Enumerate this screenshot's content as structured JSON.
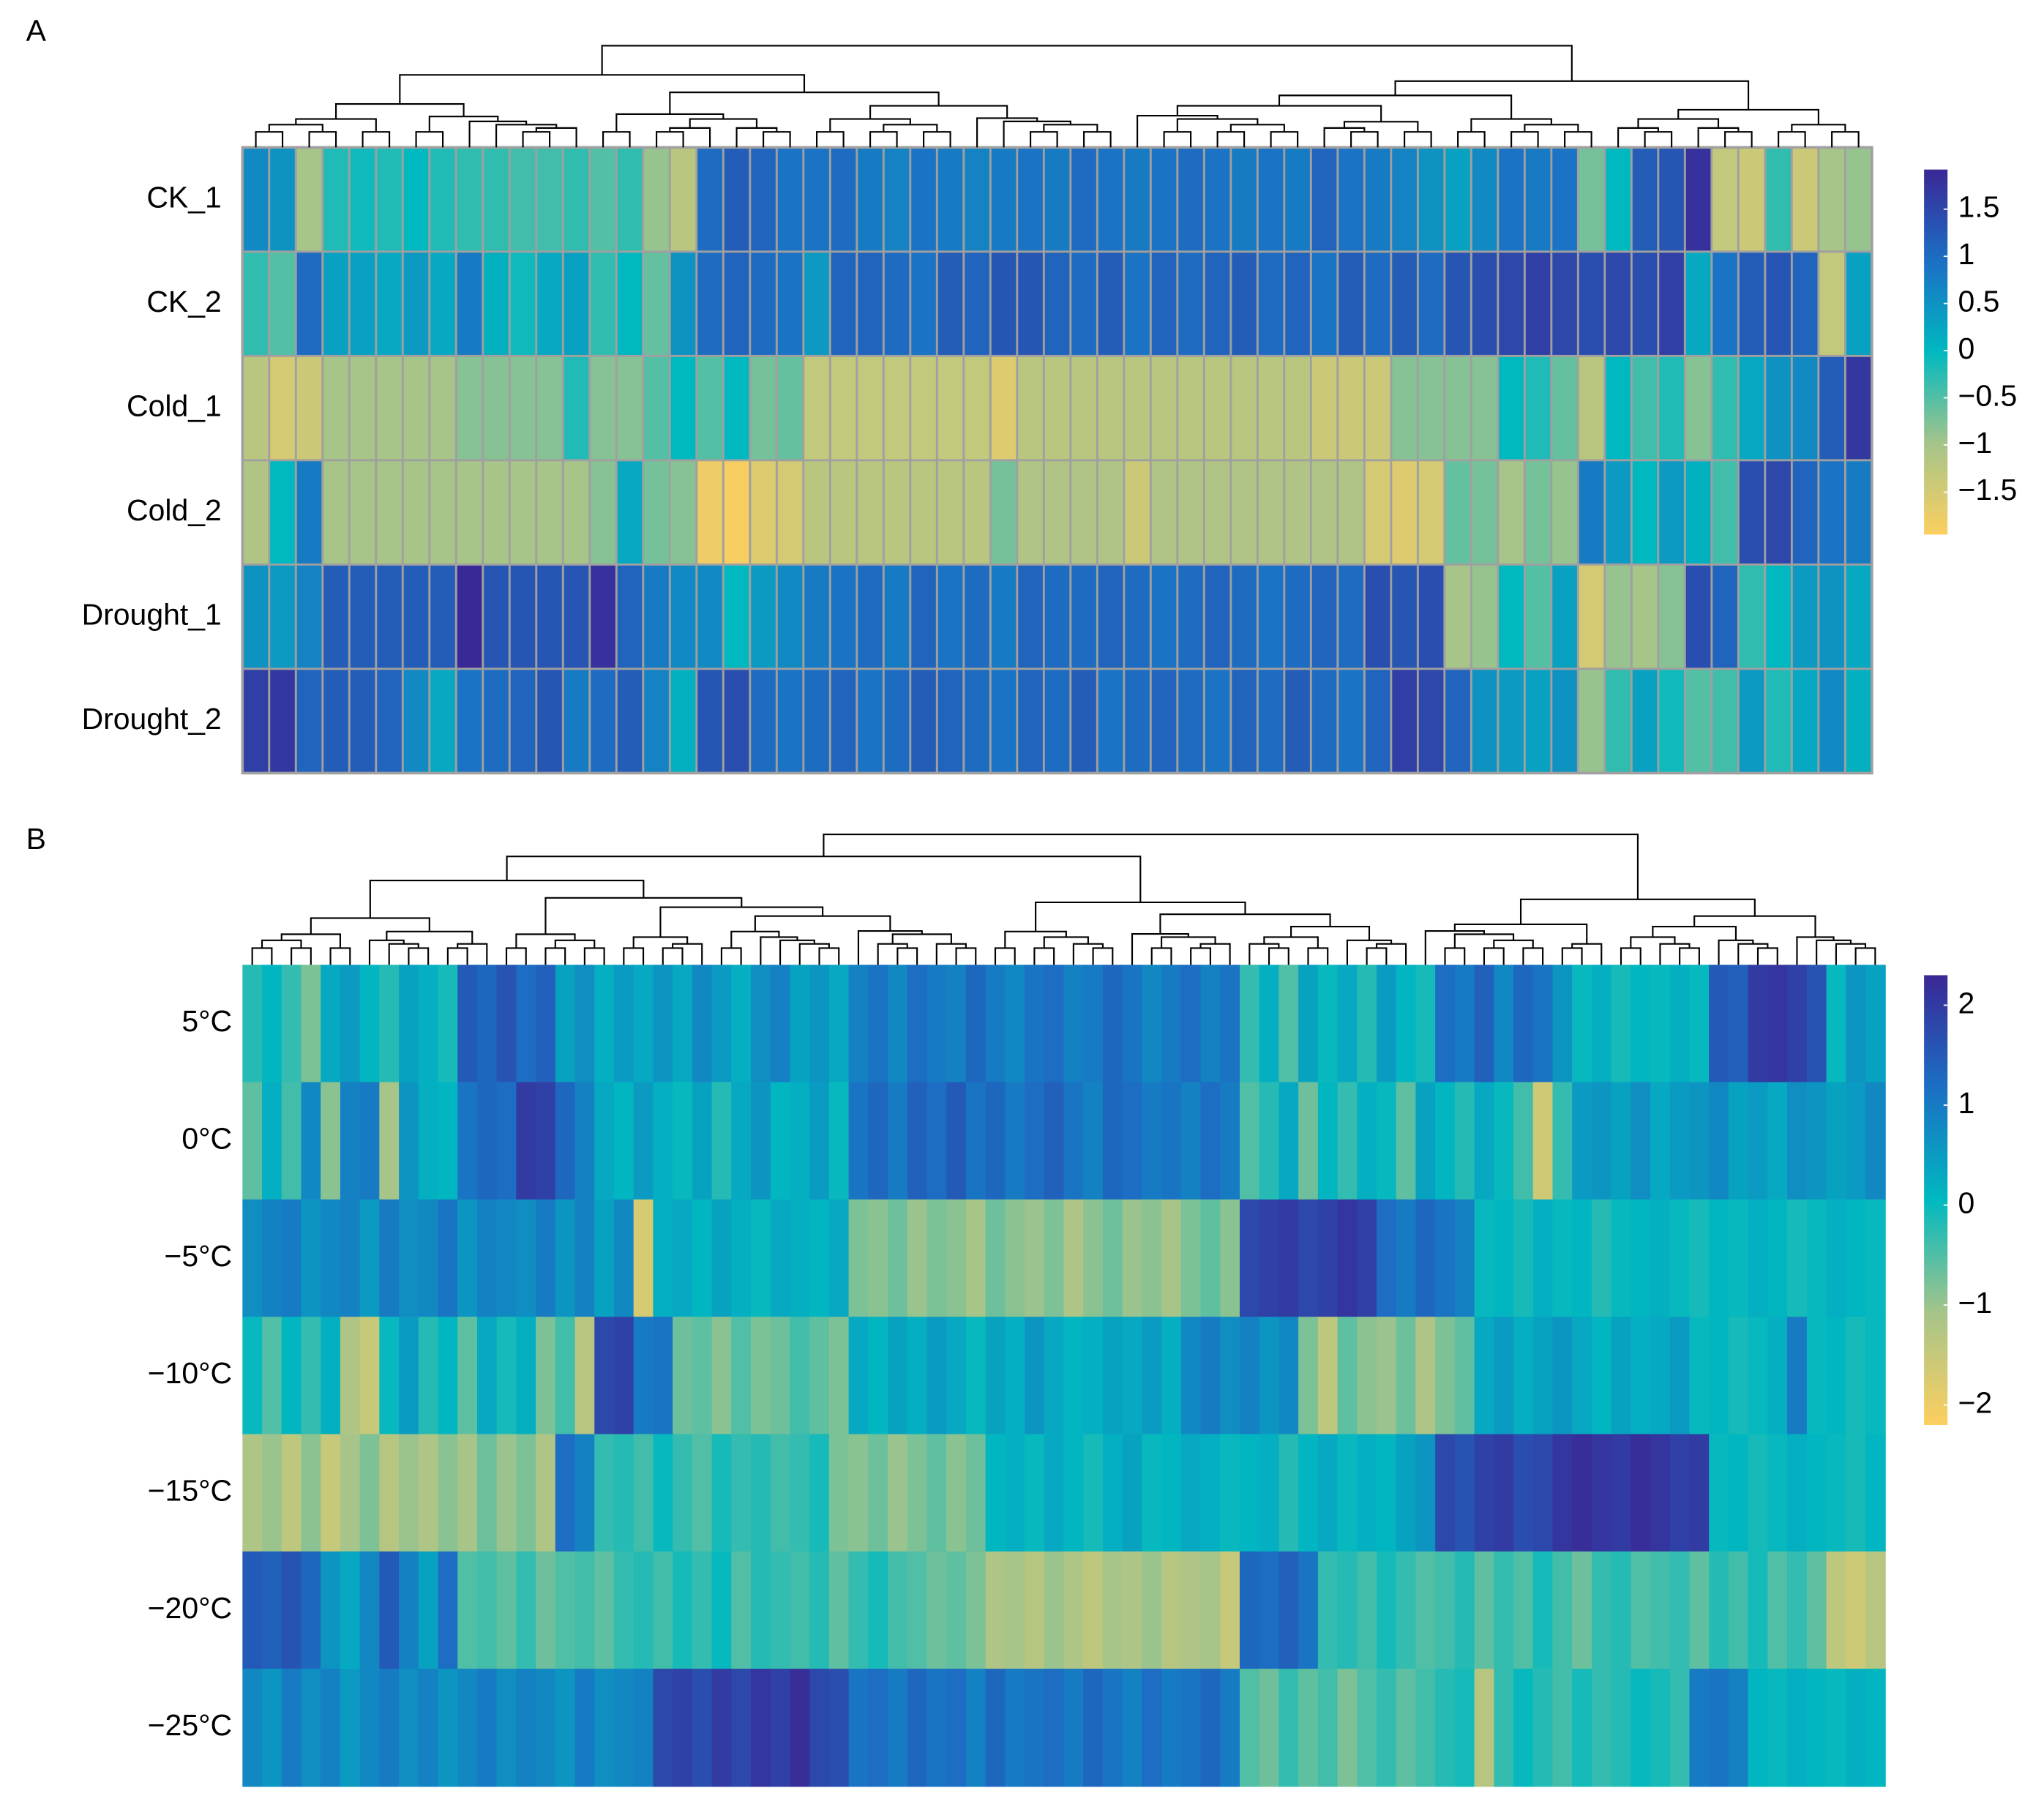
{
  "chart_data": [
    {
      "type": "heatmap",
      "panel_label": "A",
      "rows": [
        "CK_1",
        "CK_2",
        "Cold_1",
        "Cold_2",
        "Drought_1",
        "Drought_2"
      ],
      "values": [
        [
          0.6,
          0.5,
          -1.0,
          -0.2,
          -0.1,
          -0.2,
          0,
          -0.2,
          -0.3,
          -0.3,
          -0.4,
          -0.4,
          -0.3,
          -0.5,
          -0.3,
          -0.9,
          -1.2,
          1.0,
          1.2,
          1.1,
          0.9,
          0.9,
          1.0,
          0.8,
          0.7,
          0.9,
          0.8,
          0.7,
          0.8,
          0.9,
          0.8,
          1.0,
          0.9,
          0.8,
          0.9,
          1.0,
          0.9,
          0.8,
          0.9,
          0.8,
          1.1,
          0.9,
          0.8,
          0.7,
          0.5,
          0.3,
          0.6,
          0.9,
          0.8,
          0.9,
          -0.7,
          0,
          1.2,
          1.3,
          1.8,
          -1.3,
          -1.4,
          -0.3,
          -1.4,
          -1.0,
          -0.9
        ],
        [
          -0.3,
          -0.5,
          1.0,
          0.3,
          0.3,
          0.2,
          0.4,
          0.2,
          0.8,
          0.1,
          -0.1,
          0.2,
          0.3,
          -0.3,
          0,
          -0.6,
          0.5,
          1.0,
          1.1,
          1.0,
          0.9,
          0.4,
          1.1,
          1.1,
          1.0,
          0.9,
          1.2,
          1.1,
          1.3,
          1.3,
          1.1,
          1.0,
          1.2,
          0.9,
          1.1,
          1.0,
          1.1,
          1.2,
          1.0,
          1.1,
          0.9,
          1.2,
          1.0,
          1.2,
          1.0,
          1.3,
          1.4,
          1.5,
          1.6,
          1.5,
          1.4,
          1.5,
          1.4,
          1.6,
          0.2,
          0.9,
          1.2,
          1.3,
          1.1,
          -1.3,
          0.3
        ],
        [
          -1.2,
          -1.5,
          -1.4,
          -1.0,
          -1.0,
          -1.0,
          -1.0,
          -1.0,
          -0.8,
          -0.8,
          -0.8,
          -0.8,
          -0.2,
          -0.8,
          -0.8,
          -0.5,
          0,
          -0.5,
          0,
          -0.7,
          -0.6,
          -1.3,
          -1.3,
          -1.3,
          -1.3,
          -1.3,
          -1.3,
          -1.3,
          -1.6,
          -1.2,
          -1.2,
          -1.2,
          -1.2,
          -1.2,
          -1.2,
          -1.2,
          -1.2,
          -1.2,
          -1.2,
          -1.2,
          -1.4,
          -1.4,
          -1.4,
          -0.8,
          -0.8,
          -0.8,
          -0.8,
          0,
          -0.2,
          -0.6,
          -1.2,
          0,
          -0.4,
          -0.2,
          -0.8,
          -0.3,
          0.2,
          0.5,
          0.6,
          1.2,
          1.7
        ],
        [
          -1.1,
          0,
          0.8,
          -1.0,
          -1.0,
          -1.0,
          -1.0,
          -1.0,
          -1.0,
          -1.0,
          -1.0,
          -1.0,
          -1.0,
          -0.8,
          0.2,
          -0.7,
          -0.8,
          -1.8,
          -1.9,
          -1.6,
          -1.5,
          -1.2,
          -1.2,
          -1.2,
          -1.2,
          -1.2,
          -1.2,
          -1.2,
          -0.7,
          -1.1,
          -1.1,
          -1.1,
          -1.1,
          -1.4,
          -1.1,
          -1.1,
          -1.1,
          -1.1,
          -1.1,
          -1.1,
          -1.1,
          -1.1,
          -1.5,
          -1.6,
          -1.5,
          -0.6,
          -0.7,
          -1.0,
          -0.7,
          -0.9,
          0.8,
          0.4,
          0,
          0.4,
          0.1,
          -0.4,
          1.4,
          1.5,
          1.1,
          0.9,
          0.8
        ],
        [
          0.5,
          0.4,
          0.7,
          1.2,
          1.2,
          1.2,
          1.2,
          1.2,
          1.9,
          1.3,
          1.3,
          1.3,
          1.3,
          1.8,
          1.1,
          0.8,
          0.6,
          0.6,
          0,
          0.4,
          0.6,
          0.8,
          0.9,
          1.0,
          0.8,
          1.1,
          0.9,
          1.0,
          0.8,
          1.1,
          1.0,
          1.0,
          1.1,
          1.0,
          0.9,
          1.0,
          1.1,
          1.0,
          0.9,
          1.0,
          1.1,
          1.0,
          1.4,
          1.3,
          1.4,
          -1.0,
          -0.9,
          0,
          -0.5,
          0.3,
          -1.5,
          -0.9,
          -1.0,
          -0.8,
          1.4,
          1.1,
          -0.3,
          0,
          0.4,
          0.5,
          0.2
        ],
        [
          1.6,
          1.7,
          1.1,
          1.2,
          1.2,
          1.1,
          0.6,
          0.2,
          0.9,
          1.0,
          1.1,
          1.3,
          0.8,
          1.0,
          1.2,
          0.7,
          0.1,
          1.3,
          1.4,
          1.0,
          0.9,
          1.0,
          1.1,
          0.9,
          1.0,
          1.2,
          1.1,
          1.0,
          0.9,
          1.1,
          1.0,
          1.2,
          0.9,
          1.0,
          1.1,
          1.0,
          0.9,
          1.1,
          1.0,
          1.2,
          1.0,
          0.9,
          1.1,
          1.6,
          1.5,
          1.1,
          0.5,
          0.4,
          0.3,
          0.5,
          -0.9,
          -0.3,
          0.3,
          -0.1,
          -0.5,
          -0.4,
          0.4,
          -0.2,
          0.2,
          0.6,
          0.1
        ]
      ],
      "zlim": [
        -1.95,
        1.92
      ],
      "zticks": [
        {
          "value": 1.5,
          "label": "1.5"
        },
        1,
        {
          "value": 0.5,
          "label": "0.5"
        },
        0,
        {
          "value": -0.5,
          "label": "−0.5"
        },
        {
          "value": -1,
          "label": "−1"
        },
        {
          "value": -1.5,
          "label": "−1.5"
        }
      ],
      "colors": [
        "#fccf5f",
        "#a5c48a",
        "#00b9c0",
        "#1b6fc4",
        "#3a2896"
      ],
      "cell_borders": true
    },
    {
      "type": "heatmap",
      "panel_label": "B",
      "rows": [
        "5°C",
        "0°C",
        "−5°C",
        "−10°C",
        "−15°C",
        "−20°C",
        "−25°C"
      ],
      "values": [
        [
          -0.2,
          0.1,
          -0.3,
          -0.8,
          0.3,
          0.5,
          0.1,
          -0.2,
          0.4,
          0.2,
          -0.1,
          1.5,
          1.3,
          1.6,
          1.2,
          1.4,
          0.4,
          0.7,
          0.2,
          0.5,
          0.3,
          0.6,
          0.3,
          0.8,
          0.5,
          0.2,
          0.7,
          0.9,
          0.4,
          0.6,
          0.3,
          0.9,
          1.1,
          0.8,
          1.2,
          1.0,
          0.9,
          1.3,
          1.0,
          0.8,
          1.1,
          1.2,
          0.9,
          1.0,
          1.3,
          1.1,
          0.8,
          1.0,
          1.2,
          0.9,
          1.1,
          -0.3,
          0.2,
          -0.5,
          0.4,
          0.0,
          0.3,
          -0.2,
          0.5,
          0.1,
          -0.1,
          1.2,
          1.0,
          1.4,
          0.8,
          1.3,
          1.1,
          0.6,
          0.0,
          0.2,
          -0.1,
          0.1,
          0.0,
          0.2,
          0.0,
          1.5,
          1.4,
          2.0,
          2.1,
          1.9,
          1.6,
          0.0,
          0.6,
          0.4
        ],
        [
          -0.6,
          0.2,
          -0.4,
          0.8,
          -0.9,
          0.9,
          1.0,
          -1.1,
          0.6,
          0.2,
          0.1,
          1.1,
          1.3,
          1.2,
          2.0,
          1.9,
          1.3,
          0.9,
          0.3,
          0.1,
          0.5,
          0.2,
          0.0,
          0.4,
          -0.2,
          0.3,
          0.6,
          0.1,
          0.2,
          0.5,
          0.0,
          1.1,
          1.3,
          1.0,
          1.4,
          1.2,
          1.5,
          1.1,
          1.3,
          1.0,
          1.2,
          1.4,
          1.1,
          0.9,
          1.3,
          1.2,
          1.0,
          1.1,
          0.9,
          1.2,
          1.0,
          -0.5,
          -0.2,
          0.3,
          -0.7,
          0.1,
          -0.3,
          0.2,
          0.0,
          -0.6,
          0.4,
          0.1,
          -0.2,
          0.3,
          0.0,
          -0.4,
          -1.6,
          -0.3,
          0.5,
          0.6,
          0.4,
          0.7,
          0.3,
          0.5,
          0.6,
          0.8,
          0.4,
          0.5,
          0.3,
          0.7,
          0.6,
          0.4,
          0.5,
          0.8
        ],
        [
          0.7,
          0.9,
          1.0,
          0.6,
          0.8,
          0.9,
          0.5,
          1.0,
          0.7,
          0.8,
          1.1,
          0.6,
          0.9,
          0.8,
          0.7,
          1.0,
          0.6,
          0.9,
          0.4,
          0.8,
          -1.7,
          0.2,
          0.3,
          0.1,
          0.4,
          0.2,
          0.0,
          0.3,
          0.2,
          0.1,
          0.3,
          -0.8,
          -0.9,
          -0.7,
          -1.0,
          -0.8,
          -0.9,
          -1.1,
          -0.7,
          -0.9,
          -1.0,
          -0.8,
          -1.2,
          -0.9,
          -0.7,
          -1.0,
          -0.9,
          -1.1,
          -0.8,
          -0.6,
          -0.9,
          1.8,
          1.9,
          2.0,
          1.8,
          1.9,
          2.1,
          1.9,
          1.2,
          1.0,
          1.3,
          1.1,
          0.9,
          0.0,
          0.1,
          -0.1,
          0.2,
          0.0,
          0.1,
          -0.2,
          0.0,
          0.1,
          0.2,
          0.0,
          -0.1,
          0.1,
          0.0,
          0.2,
          0.1,
          -0.1,
          0.0,
          0.2,
          0.1,
          0.0
        ],
        [
          0.0,
          -0.5,
          0.1,
          -0.3,
          0.2,
          -1.2,
          -1.5,
          0.0,
          0.5,
          -0.2,
          0.1,
          -0.6,
          0.3,
          -0.1,
          0.2,
          -0.8,
          -0.4,
          -1.3,
          1.8,
          1.9,
          1.0,
          1.1,
          -0.7,
          -0.6,
          -0.9,
          -0.5,
          -0.8,
          -0.7,
          -0.4,
          -0.6,
          -0.8,
          0.3,
          0.1,
          0.4,
          0.2,
          0.5,
          0.3,
          0.0,
          0.4,
          0.2,
          0.6,
          0.3,
          0.1,
          0.2,
          0.4,
          0.3,
          0.5,
          0.2,
          0.8,
          1.0,
          0.7,
          0.9,
          0.6,
          0.8,
          -0.8,
          -1.4,
          -0.6,
          -0.9,
          -1.0,
          -0.7,
          -1.2,
          -0.8,
          -0.6,
          0.3,
          0.5,
          0.2,
          0.4,
          0.6,
          0.3,
          0.1,
          0.4,
          0.2,
          0.3,
          0.5,
          0.0,
          0.1,
          -0.1,
          0.0,
          0.2,
          1.0,
          0.0,
          0.1,
          -0.1,
          0.0
        ],
        [
          -1.2,
          -1.0,
          -1.4,
          -0.9,
          -1.5,
          -1.1,
          -0.8,
          -1.3,
          -1.0,
          -1.2,
          -0.9,
          -1.1,
          -0.7,
          -1.0,
          -0.8,
          -1.2,
          1.2,
          0.9,
          -0.3,
          -0.2,
          -0.4,
          0.0,
          -0.3,
          -0.5,
          -0.1,
          -0.3,
          -0.2,
          -0.4,
          -0.3,
          -0.1,
          -0.8,
          -0.9,
          -0.7,
          -1.0,
          -0.8,
          -0.6,
          -0.9,
          -0.7,
          0.1,
          0.2,
          0.0,
          0.3,
          0.1,
          -0.1,
          0.2,
          0.4,
          0.0,
          0.1,
          0.3,
          0.2,
          0.0,
          0.1,
          0.2,
          -0.2,
          0.1,
          0.3,
          0.0,
          0.2,
          0.1,
          0.4,
          0.6,
          1.8,
          1.6,
          1.9,
          2.0,
          1.7,
          1.8,
          2.1,
          2.2,
          2.1,
          2.0,
          2.2,
          2.1,
          1.9,
          2.0,
          0.0,
          0.1,
          -0.1,
          0.0,
          0.2,
          0.1,
          0.0,
          -0.1,
          0.1
        ],
        [
          1.5,
          1.4,
          1.6,
          1.3,
          0.6,
          0.3,
          0.8,
          1.5,
          0.9,
          0.4,
          1.2,
          -0.5,
          -0.4,
          -0.6,
          -0.3,
          -0.7,
          -0.5,
          -0.4,
          -0.6,
          -0.3,
          -0.2,
          -0.4,
          -0.1,
          -0.3,
          0.0,
          -0.5,
          -0.2,
          -0.3,
          -0.4,
          -0.2,
          -0.6,
          -0.3,
          -0.1,
          -0.4,
          -0.5,
          -0.7,
          -0.6,
          -0.8,
          -1.2,
          -1.1,
          -1.3,
          -1.0,
          -1.2,
          -1.4,
          -1.1,
          -1.2,
          -1.0,
          -1.3,
          -1.2,
          -1.1,
          -1.5,
          1.3,
          1.2,
          1.4,
          1.1,
          -0.3,
          -0.2,
          -0.4,
          -0.1,
          -0.3,
          -0.5,
          -0.4,
          -0.2,
          -0.6,
          -0.3,
          -0.5,
          -0.1,
          -0.4,
          -0.7,
          -0.3,
          -0.2,
          -0.5,
          -0.4,
          -0.3,
          -0.6,
          -0.2,
          -0.4,
          -0.1,
          -0.5,
          -0.3,
          -0.6,
          -1.4,
          -1.6,
          -1.3
        ],
        [
          0.8,
          0.6,
          1.0,
          0.7,
          0.9,
          0.5,
          0.8,
          1.0,
          0.7,
          0.9,
          0.6,
          0.8,
          1.0,
          0.7,
          0.9,
          0.8,
          0.6,
          1.0,
          0.7,
          0.8,
          0.9,
          1.8,
          1.9,
          1.7,
          2.0,
          1.8,
          2.1,
          1.9,
          2.2,
          1.8,
          1.7,
          1.1,
          1.2,
          1.0,
          1.3,
          1.1,
          1.2,
          0.9,
          1.3,
          1.0,
          1.1,
          1.2,
          1.0,
          1.3,
          1.1,
          0.9,
          1.2,
          1.0,
          1.1,
          1.3,
          1.0,
          -0.5,
          -0.7,
          -0.3,
          -0.6,
          -0.4,
          -0.8,
          -0.5,
          -0.3,
          -0.6,
          -0.4,
          -0.2,
          -0.1,
          -1.3,
          -0.3,
          0.0,
          -0.2,
          -0.4,
          -0.1,
          -0.3,
          -0.2,
          0.0,
          -0.1,
          -0.3,
          1.0,
          1.1,
          0.9,
          0.1,
          0.0,
          0.2,
          0.1,
          0.0,
          0.2,
          0.1
        ]
      ],
      "zlim": [
        -2.2,
        2.3
      ],
      "zticks": [
        2,
        1,
        0,
        {
          "value": -1,
          "label": "−1"
        },
        {
          "value": -2,
          "label": "−2"
        }
      ],
      "colors": [
        "#fccf5f",
        "#a5c48a",
        "#00b9c0",
        "#1b6fc4",
        "#3a2896"
      ],
      "cell_borders": false
    }
  ]
}
